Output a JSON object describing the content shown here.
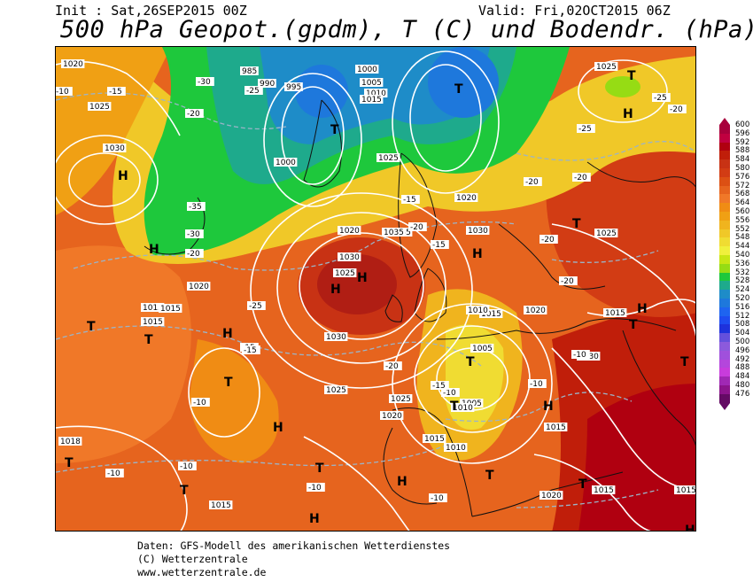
{
  "header": {
    "init": "Init : Sat,26SEP2015 00Z",
    "valid": "Valid: Fri,02OCT2015 06Z",
    "title": "500 hPa Geopot.(gpdm), T (C) und Bodendr. (hPa)"
  },
  "legend": {
    "values": [
      600,
      596,
      592,
      588,
      584,
      580,
      576,
      572,
      568,
      564,
      560,
      556,
      552,
      548,
      544,
      540,
      536,
      532,
      528,
      524,
      520,
      516,
      512,
      508,
      504,
      500,
      496,
      492,
      488,
      484,
      480,
      476
    ],
    "colors": [
      "#a8003c",
      "#c00040",
      "#b00010",
      "#c01e0a",
      "#c83214",
      "#d23c14",
      "#dc5014",
      "#e6641e",
      "#f07828",
      "#f08c14",
      "#f0a014",
      "#f0b41e",
      "#f0c828",
      "#f0dc32",
      "#f0f03c",
      "#c8e614",
      "#96dc14",
      "#1ec83c",
      "#1eaa8c",
      "#1e8cc8",
      "#1e78dc",
      "#1e64f0",
      "#1e4cf0",
      "#1e32dc",
      "#6450dc",
      "#8c5adc",
      "#a050dc",
      "#b446dc",
      "#c83cdc",
      "#a028b4",
      "#8c148c",
      "#640a64"
    ]
  },
  "highs": [
    {
      "id": "h1",
      "label": "H"
    },
    {
      "id": "h2",
      "label": "H"
    },
    {
      "id": "h3",
      "label": "H"
    },
    {
      "id": "h4",
      "label": "H"
    },
    {
      "id": "h5",
      "label": "H"
    },
    {
      "id": "h6",
      "label": "H"
    },
    {
      "id": "h7",
      "label": "H"
    },
    {
      "id": "h8",
      "label": "H"
    },
    {
      "id": "h9",
      "label": "H"
    },
    {
      "id": "h10",
      "label": "H"
    },
    {
      "id": "h11",
      "label": "H"
    },
    {
      "id": "h12",
      "label": "H"
    },
    {
      "id": "h13",
      "label": "H"
    }
  ],
  "lows": [
    {
      "id": "t1",
      "label": "T"
    },
    {
      "id": "t2",
      "label": "T"
    },
    {
      "id": "t3",
      "label": "T"
    },
    {
      "id": "t4",
      "label": "T"
    },
    {
      "id": "t5",
      "label": "T"
    },
    {
      "id": "t6",
      "label": "T"
    },
    {
      "id": "t7",
      "label": "T"
    },
    {
      "id": "t8",
      "label": "T"
    },
    {
      "id": "t9",
      "label": "T"
    },
    {
      "id": "t10",
      "label": "T"
    },
    {
      "id": "t11",
      "label": "T"
    },
    {
      "id": "t12",
      "label": "T"
    },
    {
      "id": "t13",
      "label": "T"
    },
    {
      "id": "t14",
      "label": "T"
    },
    {
      "id": "t15",
      "label": "T"
    },
    {
      "id": "t16",
      "label": "T"
    }
  ],
  "pressure_labels": [
    "1020",
    "1025",
    "1030",
    "1035",
    "1030",
    "1035",
    "1025",
    "1020",
    "1015",
    "1015",
    "1030",
    "1025",
    "1020",
    "1015",
    "1010",
    "1005",
    "1000",
    "995",
    "990",
    "985",
    "1000",
    "1005",
    "1010",
    "1015",
    "1020",
    "1025",
    "1030",
    "1025",
    "1020",
    "1015",
    "1010",
    "1015",
    "1020",
    "1025",
    "1015",
    "1030",
    "1020",
    "1015",
    "1015",
    "1015",
    "1015",
    "1018",
    "1010",
    "1005",
    "1025"
  ],
  "temp_labels": [
    "-10",
    "-15",
    "-20",
    "-25",
    "-30",
    "-35",
    "-30",
    "-25",
    "-20",
    "-15",
    "-10",
    "-15",
    "-20",
    "-25",
    "-20",
    "-20",
    "-20",
    "-15",
    "-10",
    "-15",
    "-20",
    "-15",
    "-10",
    "-10",
    "-10",
    "-10",
    "-10",
    "-20",
    "-25",
    "-20",
    "-10"
  ],
  "footer": {
    "line1": "Daten: GFS-Modell des amerikanischen Wetterdienstes",
    "line2": "(C) Wetterzentrale",
    "line3": "www.wetterzentrale.de"
  }
}
